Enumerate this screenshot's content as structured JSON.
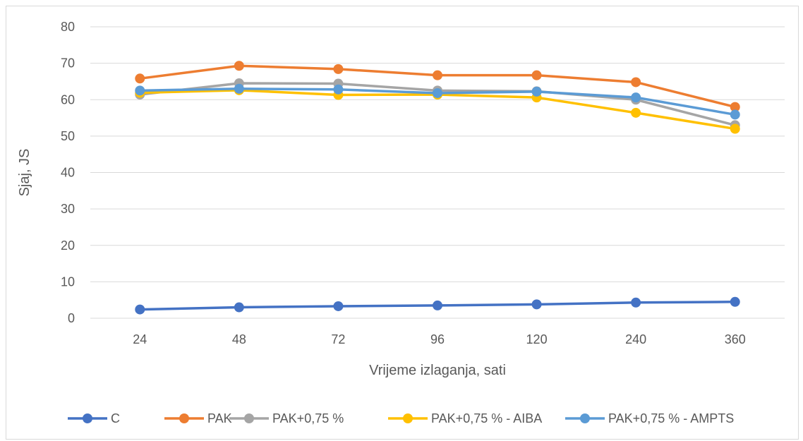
{
  "chart_data": {
    "type": "line",
    "title": "",
    "xlabel": "Vrijeme izlaganja, sati",
    "ylabel": "Sjaj, JS",
    "categories": [
      "24",
      "48",
      "72",
      "96",
      "120",
      "240",
      "360"
    ],
    "ylim": [
      0,
      80
    ],
    "yticks": [
      "0",
      "10",
      "20",
      "30",
      "40",
      "50",
      "60",
      "70",
      "80"
    ],
    "grid": true,
    "legend_position": "bottom",
    "series": [
      {
        "name": "C",
        "color": "#4472c4",
        "values": [
          2.4,
          3.0,
          3.3,
          3.5,
          3.8,
          4.3,
          4.5
        ]
      },
      {
        "name": "PAK",
        "color": "#ed7d31",
        "values": [
          65.8,
          69.3,
          68.4,
          66.7,
          66.7,
          64.8,
          58.0
        ]
      },
      {
        "name": "PAK+0,75 %",
        "color": "#a5a5a5",
        "values": [
          61.4,
          64.5,
          64.4,
          62.5,
          62.3,
          60.0,
          53.0
        ]
      },
      {
        "name": "PAK+0,75 % - AIBA",
        "color": "#ffc000",
        "values": [
          61.9,
          62.6,
          61.3,
          61.4,
          60.6,
          56.4,
          52.0
        ]
      },
      {
        "name": "PAK+0,75 % - AMPTS",
        "color": "#5b9bd5",
        "values": [
          62.5,
          63.0,
          62.8,
          61.8,
          62.2,
          60.6,
          55.9
        ]
      }
    ]
  }
}
